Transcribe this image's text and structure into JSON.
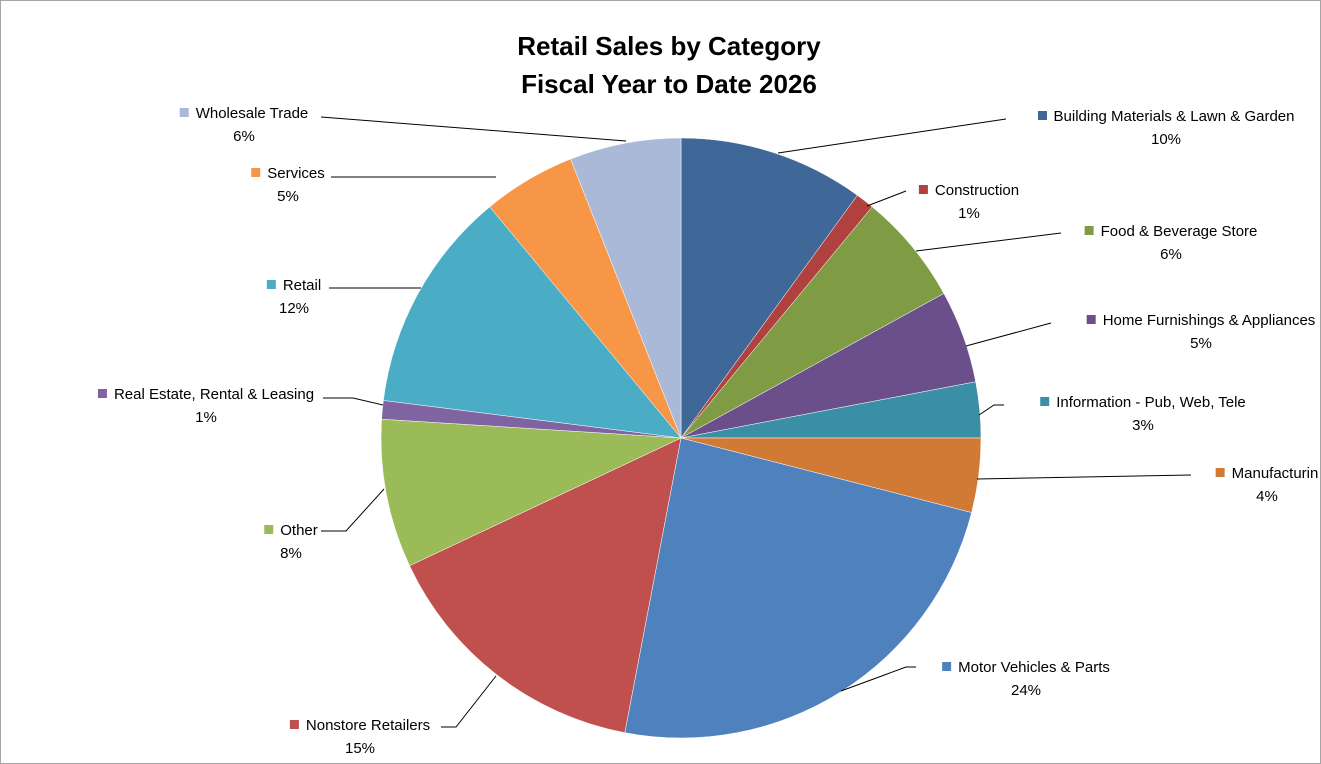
{
  "chart_data": {
    "type": "pie",
    "title": "Retail Sales by Category",
    "subtitle": "Fiscal Year to Date 2026",
    "categories": [
      "Building Materials & Lawn & Garden",
      "Construction",
      "Food & Beverage Store",
      "Home Furnishings & Appliances",
      "Information - Pub, Web, Tele",
      "Manufacturin",
      "Motor Vehicles & Parts",
      "Nonstore Retailers",
      "Other",
      "Real Estate, Rental & Leasing",
      "Retail",
      "Services",
      "Wholesale Trade"
    ],
    "values": [
      10,
      1,
      6,
      5,
      3,
      4,
      24,
      15,
      8,
      1,
      12,
      5,
      6
    ],
    "value_labels": [
      "10%",
      "1%",
      "6%",
      "5%",
      "3%",
      "4%",
      "24%",
      "15%",
      "8%",
      "1%",
      "12%",
      "5%",
      "6%"
    ],
    "colors": [
      "#3f6797",
      "#b0413e",
      "#7f9c45",
      "#6b4f8b",
      "#3a8ea5",
      "#d07a35",
      "#4f81bd",
      "#c0504d",
      "#9bbb59",
      "#8064a2",
      "#4bacc6",
      "#f79646",
      "#aab9d7"
    ]
  }
}
